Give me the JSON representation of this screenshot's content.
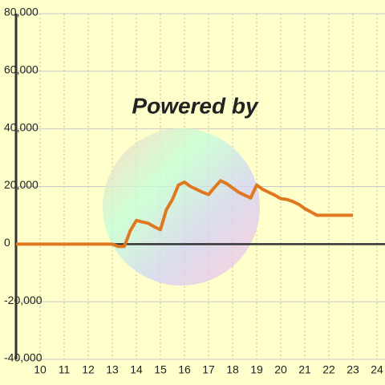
{
  "chart_data": {
    "type": "line",
    "watermark": "Powered by",
    "x": [
      9,
      13,
      13.25,
      13.5,
      13.75,
      14,
      14.25,
      14.5,
      14.75,
      15,
      15.25,
      15.5,
      15.75,
      16,
      16.25,
      16.5,
      16.75,
      17,
      17.25,
      17.5,
      17.75,
      18,
      18.25,
      18.5,
      18.75,
      19,
      19.25,
      19.5,
      19.75,
      20,
      20.25,
      20.5,
      20.75,
      21,
      21.25,
      21.5,
      23
    ],
    "series": [
      {
        "color": "#e07820",
        "values": [
          0,
          0,
          -800,
          -800,
          4700,
          8200,
          7700,
          7200,
          6000,
          5000,
          12000,
          15500,
          20500,
          21500,
          20000,
          19000,
          18000,
          17200,
          19700,
          22000,
          21000,
          19500,
          18000,
          17000,
          16000,
          20500,
          19000,
          18000,
          17000,
          15800,
          15500,
          14800,
          13800,
          12300,
          11200,
          10000,
          10000
        ]
      }
    ],
    "xlim": [
      9,
      24.333
    ],
    "xticks": [
      10,
      11,
      12,
      13,
      14,
      15,
      16,
      17,
      18,
      19,
      20,
      21,
      22,
      23,
      24
    ],
    "ylim": [
      -40000,
      80000
    ],
    "yticks": [
      {
        "value": -40000,
        "label": "-40,000"
      },
      {
        "value": -20000,
        "label": "-20,000"
      },
      0,
      {
        "value": 20000,
        "label": "20,000"
      },
      {
        "value": 40000,
        "label": "40,000"
      },
      {
        "value": 60000,
        "label": "60,000"
      },
      {
        "value": 80000,
        "label": "80,000"
      }
    ],
    "grid": true
  }
}
